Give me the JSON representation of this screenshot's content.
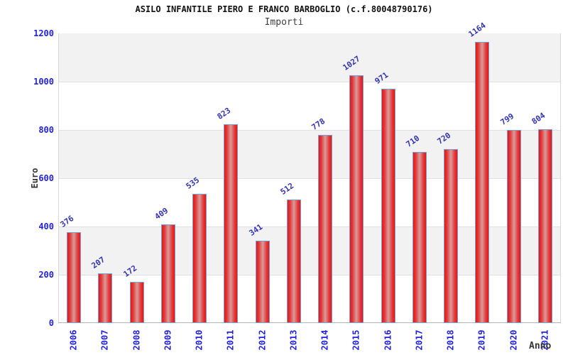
{
  "header": {
    "title": "ASILO INFANTILE PIERO E FRANCO BARBOGLIO (c.f.80048790176)",
    "subtitle": "Importi"
  },
  "chart_data": {
    "type": "bar",
    "title": "ASILO INFANTILE PIERO E FRANCO BARBOGLIO (c.f.80048790176)",
    "subtitle": "Importi",
    "xlabel": "Anno",
    "ylabel": "Euro",
    "categories": [
      "2006",
      "2007",
      "2008",
      "2009",
      "2010",
      "2011",
      "2012",
      "2013",
      "2014",
      "2015",
      "2016",
      "2017",
      "2018",
      "2019",
      "2020",
      "2021"
    ],
    "values": [
      376,
      207,
      172,
      409,
      535,
      823,
      341,
      512,
      778,
      1027,
      971,
      710,
      720,
      1164,
      799,
      804
    ],
    "ylim": [
      0,
      1200
    ],
    "yticks": [
      0,
      200,
      400,
      600,
      800,
      1000,
      1200
    ],
    "legend": "none",
    "grid": "horizontal-bands-alternating",
    "value_labels": "above-bars-rotated",
    "colors": {
      "bar_edge": "#ec1212",
      "bar_center": "#d89c9c",
      "bar_border": "#6fa3d9",
      "tick_label": "#2222dd",
      "value_label": "#3434b0",
      "band_gray": "#f2f2f2",
      "band_white": "#ffffff",
      "gridline": "#e0e0e0",
      "plot_border": "#d8d8d8",
      "axis_line": "#b4b4b4",
      "title": "#111111",
      "subtitle": "#404040",
      "axis_title": "#333333"
    }
  }
}
